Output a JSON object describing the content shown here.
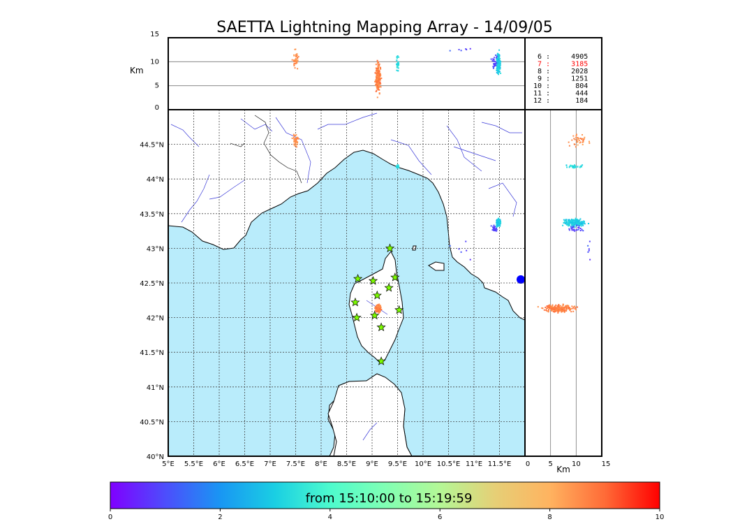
{
  "chart_data": {
    "type": "scatter",
    "title": "SAETTA Lightning Mapping Array - 14/09/05",
    "alt_panel": {
      "ylabel": "Km",
      "ylim": [
        0,
        15
      ],
      "yticks": [
        "0",
        "5",
        "10",
        "15"
      ],
      "gridlines_km": [
        5,
        10
      ]
    },
    "side_panel": {
      "xlabel": "Km",
      "xlim": [
        0,
        15
      ],
      "xticks": [
        "0",
        "5",
        "10",
        "15"
      ],
      "gridlines_km": [
        5,
        10
      ]
    },
    "map": {
      "xlim": [
        5.0,
        12.0
      ],
      "ylim": [
        40.0,
        45.0
      ],
      "xticks": [
        "5°E",
        "5.5°E",
        "6°E",
        "6.5°E",
        "7°E",
        "7.5°E",
        "8°E",
        "8.5°E",
        "9°E",
        "9.5°E",
        "10°E",
        "10.5°E",
        "11°E",
        "11.5°E"
      ],
      "yticks": [
        "40°N",
        "40.5°N",
        "41°N",
        "41.5°N",
        "42°N",
        "42.5°N",
        "43°N",
        "43.5°N",
        "44°N",
        "44.5°N"
      ],
      "sea_color": "#b9ecfb",
      "grid": "dotted"
    },
    "legend": {
      "placement": "top-right",
      "rows": [
        {
          "label": " 6 :     4905",
          "color": "#000000"
        },
        {
          "label": " 7 :     3185",
          "color": "#ff0000"
        },
        {
          "label": " 8 :     2028",
          "color": "#000000"
        },
        {
          "label": " 9 :     1251",
          "color": "#000000"
        },
        {
          "label": "10 :      804",
          "color": "#000000"
        },
        {
          "label": "11 :      444",
          "color": "#000000"
        },
        {
          "label": "12 :      184",
          "color": "#000000"
        }
      ]
    },
    "stations": [
      {
        "lon": 9.35,
        "lat": 43.0
      },
      {
        "lon": 8.72,
        "lat": 42.56
      },
      {
        "lon": 9.02,
        "lat": 42.53
      },
      {
        "lon": 9.45,
        "lat": 42.58
      },
      {
        "lon": 9.33,
        "lat": 42.43
      },
      {
        "lon": 9.1,
        "lat": 42.32
      },
      {
        "lon": 8.67,
        "lat": 42.22
      },
      {
        "lon": 9.53,
        "lat": 42.11
      },
      {
        "lon": 8.7,
        "lat": 42.0
      },
      {
        "lon": 9.05,
        "lat": 42.03
      },
      {
        "lon": 9.18,
        "lat": 41.86
      },
      {
        "lon": 9.18,
        "lat": 41.37
      }
    ],
    "clusters": [
      {
        "lon": 7.5,
        "lat": 44.55,
        "lon_spread": 0.05,
        "lat_spread": 0.08,
        "alt": 10.5,
        "alt_spread": 2.0,
        "t": 8.5,
        "n": 40
      },
      {
        "lon": 9.12,
        "lat": 42.13,
        "lon_spread": 0.05,
        "lat_spread": 0.05,
        "alt": 6.5,
        "alt_spread": 3.0,
        "t": 8.7,
        "n": 200
      },
      {
        "lon": 9.5,
        "lat": 44.18,
        "lon_spread": 0.02,
        "lat_spread": 0.03,
        "alt": 10.0,
        "alt_spread": 1.5,
        "t": 3.3,
        "n": 30
      },
      {
        "lon": 11.48,
        "lat": 43.37,
        "lon_spread": 0.04,
        "lat_spread": 0.05,
        "alt": 9.8,
        "alt_spread": 2.0,
        "t": 3.0,
        "n": 180
      },
      {
        "lon": 11.4,
        "lat": 43.28,
        "lon_spread": 0.05,
        "lat_spread": 0.05,
        "alt": 9.5,
        "alt_spread": 2.0,
        "t": 0.8,
        "n": 25
      },
      {
        "lon": 10.8,
        "lat": 42.9,
        "lon_spread": 0.3,
        "lat_spread": 0.2,
        "alt": 12.5,
        "alt_spread": 0.5,
        "t": 1.0,
        "n": 6
      }
    ],
    "colorbar": {
      "min": 0,
      "max": 10,
      "ticks": [
        "0",
        "2",
        "4",
        "6",
        "8",
        "10"
      ],
      "label": "from 15:10:00 to 15:19:59",
      "colormap": [
        "#8000ff",
        "#4d4dfc",
        "#1996f3",
        "#1acfe3",
        "#4dfbcd",
        "#80ffb4",
        "#b4f796",
        "#e6cf76",
        "#ffb360",
        "#ff6b37",
        "#ff0000"
      ]
    }
  }
}
